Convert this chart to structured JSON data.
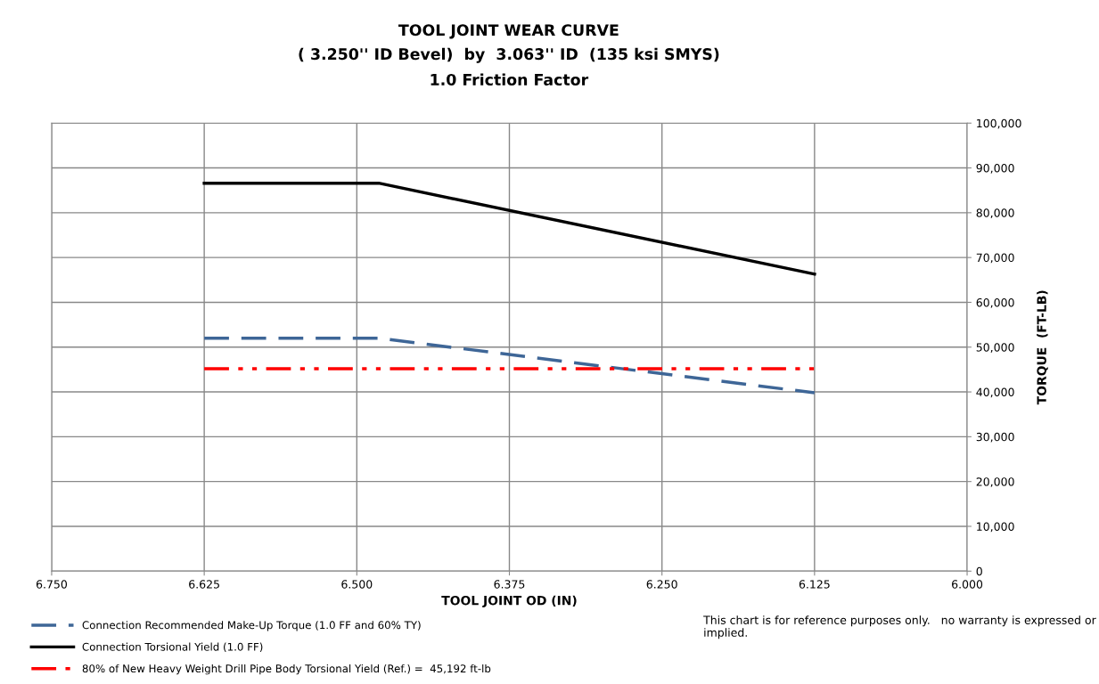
{
  "chart_data": {
    "type": "line",
    "title": "TOOL JOINT WEAR CURVE",
    "subtitle": "( 3.250'' ID Bevel)  by  3.063'' ID  (135 ksi SMYS)\n1.0 Friction Factor",
    "xlabel": "TOOL JOINT OD (IN)",
    "ylabel": "TORQUE  (FT-LB)",
    "xlim": [
      6.75,
      6.0
    ],
    "xticks": [
      {
        "value": 6.75,
        "label": "6.750"
      },
      {
        "value": 6.625,
        "label": "6.625"
      },
      {
        "value": 6.5,
        "label": "6.500"
      },
      {
        "value": 6.375,
        "label": "6.375"
      },
      {
        "value": 6.25,
        "label": "6.250"
      },
      {
        "value": 6.125,
        "label": "6.125"
      },
      {
        "value": 6.0,
        "label": "6.000"
      }
    ],
    "ylim": [
      0,
      100000
    ],
    "yticks": [
      0,
      {
        "value": 10000,
        "label": "10,000"
      },
      {
        "value": 20000,
        "label": "20,000"
      },
      {
        "value": 30000,
        "label": "30,000"
      },
      {
        "value": 40000,
        "label": "40,000"
      },
      {
        "value": 50000,
        "label": "50,000"
      },
      {
        "value": 60000,
        "label": "60,000"
      },
      {
        "value": 70000,
        "label": "70,000"
      },
      {
        "value": 80000,
        "label": "80,000"
      },
      {
        "value": 90000,
        "label": "90,000"
      },
      {
        "value": 100000,
        "label": "100,000"
      }
    ],
    "grid": true,
    "legend": "bottom left",
    "series": [
      {
        "name": "Connection Recommended Make-Up Torque (1.0 FF and 60% TY)",
        "color": "#3e6697",
        "line_style": "dashed",
        "x": [
          6.625,
          6.482,
          6.125
        ],
        "values": [
          52000,
          52000,
          39800
        ]
      },
      {
        "name": "Connection Torsional Yield (1.0 FF)",
        "color": "#000000",
        "line_style": "solid",
        "x": [
          6.625,
          6.482,
          6.125
        ],
        "values": [
          86600,
          86600,
          66300
        ]
      },
      {
        "name": "80% of New Heavy Weight Drill Pipe Body Torsional Yield (Ref.) =  45,192 ft-lb",
        "color": "#ff0000",
        "line_style": "dashdotdot",
        "x": [
          6.625,
          6.125
        ],
        "values": [
          45192,
          45192
        ]
      }
    ],
    "annotations": [
      "This chart is for reference purposes only.   no warranty is expressed or implied."
    ]
  }
}
